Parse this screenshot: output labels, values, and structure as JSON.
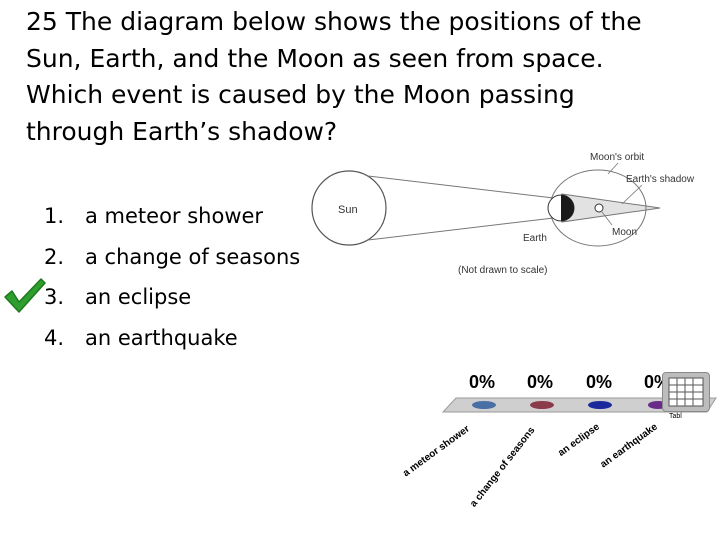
{
  "question": {
    "text": "25 The diagram below shows the positions of the\nSun, Earth, and the Moon as seen from space.\nWhich event is caused by the Moon passing\nthrough Earth’s shadow?"
  },
  "choices": [
    {
      "num": "1.",
      "label": "a meteor shower"
    },
    {
      "num": "2.",
      "label": "a change of seasons"
    },
    {
      "num": "3.",
      "label": "an eclipse"
    },
    {
      "num": "4.",
      "label": "an earthquake"
    }
  ],
  "correct_choice": 3,
  "diagram": {
    "sun": "Sun",
    "earth": "Earth",
    "moon": "Moon",
    "moons_orbit": "Moon's orbit",
    "earths_shadow": "Earth's shadow",
    "scale_note": "(Not drawn to scale)"
  },
  "poll": {
    "percentages": [
      "0%",
      "0%",
      "0%",
      "0%"
    ],
    "labels": [
      "a meteor shower",
      "a change of seasons",
      "an eclipse",
      "an earthquake"
    ],
    "bar_colors": [
      "#4a6fa5",
      "#8b3a4a",
      "#1a2a9c",
      "#6a2a8a"
    ],
    "table_label": "Tabl"
  },
  "colors": {
    "check": "#2e9e2e",
    "shelf": "#9a9a9a"
  }
}
